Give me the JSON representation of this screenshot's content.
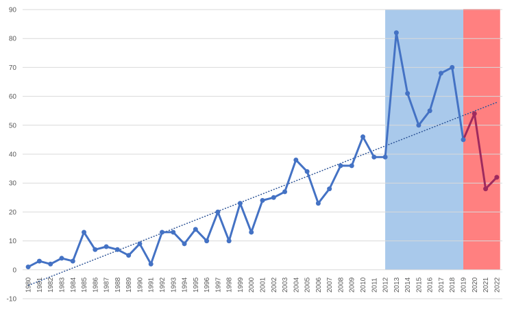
{
  "chart_data": {
    "type": "line",
    "title": "",
    "xlabel": "",
    "ylabel": "",
    "categories": [
      "1980",
      "1981",
      "1982",
      "1983",
      "1984",
      "1985",
      "1986",
      "1987",
      "1988",
      "1989",
      "1990",
      "1991",
      "1992",
      "1993",
      "1994",
      "1995",
      "1996",
      "1997",
      "1998",
      "1999",
      "2000",
      "2001",
      "2002",
      "2003",
      "2004",
      "2005",
      "2006",
      "2007",
      "2008",
      "2009",
      "2010",
      "2011",
      "2012",
      "2013",
      "2014",
      "2015",
      "2016",
      "2017",
      "2018",
      "2019",
      "2020",
      "2021",
      "2022"
    ],
    "values": [
      1,
      3,
      2,
      4,
      3,
      13,
      7,
      8,
      7,
      5,
      9,
      2,
      13,
      13,
      9,
      14,
      10,
      20,
      10,
      23,
      13,
      24,
      25,
      27,
      38,
      34,
      23,
      28,
      36,
      36,
      46,
      39,
      39,
      82,
      61,
      50,
      55,
      68,
      70,
      45,
      54,
      28,
      32
    ],
    "ylim": [
      -10,
      90
    ],
    "yticks": [
      -10,
      0,
      10,
      20,
      30,
      40,
      50,
      60,
      70,
      80,
      90
    ],
    "grid": true,
    "trendline": {
      "type": "linear",
      "style": "dotted"
    },
    "highlight_ranges": [
      {
        "from": "2012",
        "to": "2019",
        "color": "#a9c9eb"
      },
      {
        "from": "2019",
        "to": "2022",
        "color": "#ff8080"
      }
    ],
    "colors": {
      "line": "#4472c4",
      "line_highlight": "#9e2a5e",
      "trend": "#2f5597",
      "grid": "#d9d9d9"
    }
  }
}
